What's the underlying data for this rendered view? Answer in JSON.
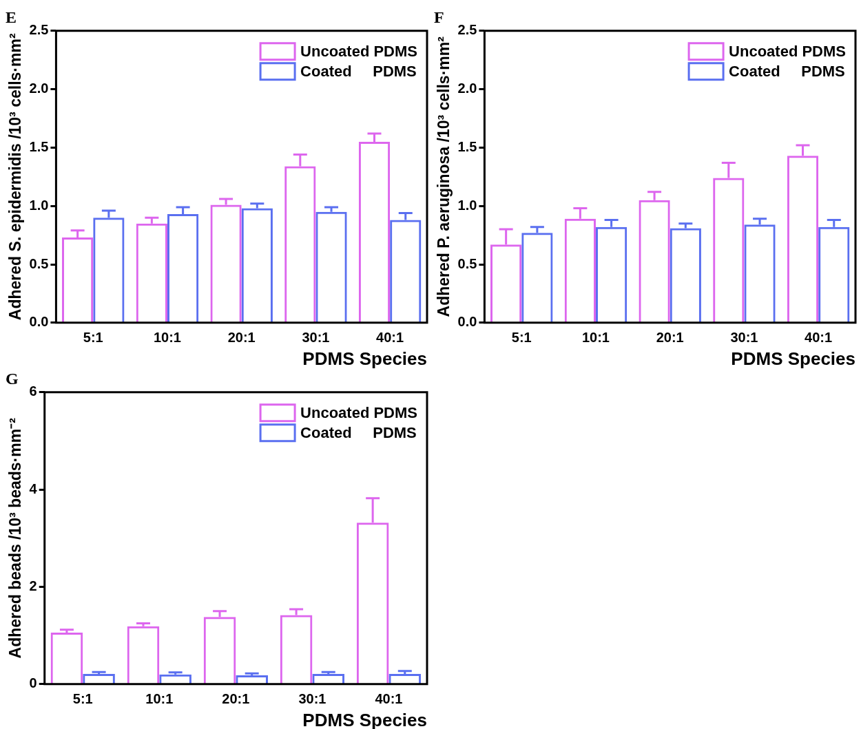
{
  "chart_data": [
    {
      "type": "bar",
      "title": "E",
      "xlabel": "PDMS Species",
      "ylabel": "Adhered S. epidermidis /10³ cells·mm²",
      "categories": [
        "5:1",
        "10:1",
        "20:1",
        "30:1",
        "40:1"
      ],
      "ylim": [
        0,
        2.5
      ],
      "yticks": [
        {
          "value": 0,
          "label": "0.0"
        },
        0.5,
        {
          "value": 1,
          "label": "1.0"
        },
        1.5,
        {
          "value": 2,
          "label": "2.0"
        },
        2.5
      ],
      "legend": "top right",
      "series": [
        {
          "name": "Uncoated PDMS",
          "color": "#dd66ee",
          "values": [
            0.73,
            0.85,
            1.01,
            1.34,
            1.55
          ],
          "errors": [
            0.06,
            0.05,
            0.05,
            0.1,
            0.07
          ]
        },
        {
          "name": "Coated     PDMS",
          "color": "#5a6ff0",
          "values": [
            0.9,
            0.93,
            0.98,
            0.95,
            0.88
          ],
          "errors": [
            0.06,
            0.06,
            0.04,
            0.04,
            0.06
          ]
        }
      ]
    },
    {
      "type": "bar",
      "title": "F",
      "xlabel": "PDMS Species",
      "ylabel": "Adhered P. aeruginosa /10³ cells·mm²",
      "categories": [
        "5:1",
        "10:1",
        "20:1",
        "30:1",
        "40:1"
      ],
      "ylim": [
        0,
        2.5
      ],
      "yticks": [
        {
          "value": 0,
          "label": "0.0"
        },
        0.5,
        {
          "value": 1,
          "label": "1.0"
        },
        1.5,
        {
          "value": 2,
          "label": "2.0"
        },
        2.5
      ],
      "legend": "top right",
      "series": [
        {
          "name": "Uncoated PDMS",
          "color": "#dd66ee",
          "values": [
            0.67,
            0.89,
            1.05,
            1.24,
            1.43
          ],
          "errors": [
            0.13,
            0.09,
            0.07,
            0.13,
            0.09
          ]
        },
        {
          "name": "Coated     PDMS",
          "color": "#5a6ff0",
          "values": [
            0.77,
            0.82,
            0.81,
            0.84,
            0.82
          ],
          "errors": [
            0.05,
            0.06,
            0.04,
            0.05,
            0.06
          ]
        }
      ]
    },
    {
      "type": "bar",
      "title": "G",
      "xlabel": "PDMS Species",
      "ylabel": "Adhered beads /10³ beads·mm⁻²",
      "categories": [
        "5:1",
        "10:1",
        "20:1",
        "30:1",
        "40:1"
      ],
      "ylim": [
        0,
        6
      ],
      "yticks": [
        0,
        2,
        4,
        6
      ],
      "legend": "top right",
      "series": [
        {
          "name": "Uncoated PDMS",
          "color": "#dd66ee",
          "values": [
            1.06,
            1.19,
            1.38,
            1.42,
            3.32
          ],
          "errors": [
            0.06,
            0.06,
            0.12,
            0.12,
            0.5
          ]
        },
        {
          "name": "Coated     PDMS",
          "color": "#5a6ff0",
          "values": [
            0.21,
            0.2,
            0.18,
            0.21,
            0.21
          ],
          "errors": [
            0.04,
            0.04,
            0.04,
            0.04,
            0.06
          ]
        }
      ]
    }
  ]
}
